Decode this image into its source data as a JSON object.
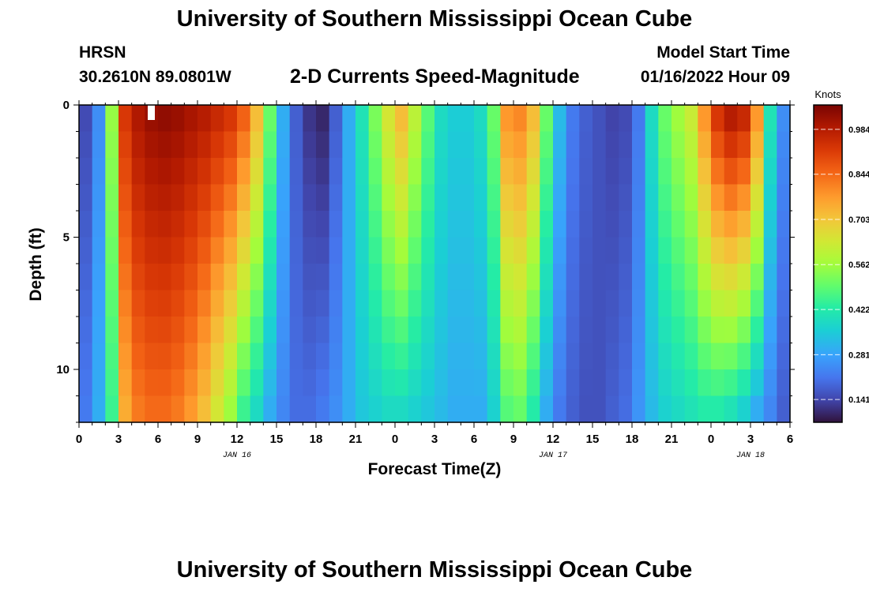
{
  "header": {
    "title": "University of Southern Mississippi Ocean Cube",
    "station": "HRSN",
    "coords": "30.2610N  89.0801W",
    "subtitle": "2-D Currents Speed-Magnitude",
    "model_start_label": "Model Start Time",
    "model_start_value": "01/16/2022 Hour 09"
  },
  "footer": {
    "title": "University of Southern Mississippi Ocean Cube"
  },
  "chart_data": {
    "type": "heatmap",
    "xlabel": "Forecast Time(Z)",
    "ylabel": "Depth (ft)",
    "colorbar_label": "Knots",
    "x_tick_labels": [
      "0",
      "3",
      "6",
      "9",
      "12",
      "15",
      "18",
      "21",
      "0",
      "3",
      "6",
      "9",
      "12",
      "15",
      "18",
      "21",
      "0",
      "3",
      "6"
    ],
    "date_labels": [
      {
        "text": "JAN 16",
        "hour": 12
      },
      {
        "text": "JAN 17",
        "hour": 36
      },
      {
        "text": "JAN 18",
        "hour": 51
      }
    ],
    "y_tick_labels": [
      "0",
      "5",
      "10"
    ],
    "xlim": [
      0,
      54
    ],
    "ylim": [
      0,
      12
    ],
    "colorbar_ticks": [
      "0.984",
      "0.844",
      "0.703",
      "0.562",
      "0.422",
      "0.281",
      "0.141"
    ],
    "color_range": [
      0.07,
      1.06
    ],
    "hours": [
      0,
      1,
      2,
      3,
      4,
      5,
      6,
      7,
      8,
      9,
      10,
      11,
      12,
      13,
      14,
      15,
      16,
      17,
      18,
      19,
      20,
      21,
      22,
      23,
      24,
      25,
      26,
      27,
      28,
      29,
      30,
      31,
      32,
      33,
      34,
      35,
      36,
      37,
      38,
      39,
      40,
      41,
      42,
      43,
      44,
      45,
      46,
      47,
      48,
      49,
      50,
      51,
      52,
      53,
      54
    ],
    "surface_speed": [
      0.15,
      0.25,
      0.55,
      0.92,
      0.99,
      1.02,
      1.03,
      1.02,
      1.0,
      0.98,
      0.95,
      0.92,
      0.85,
      0.72,
      0.5,
      0.3,
      0.18,
      0.12,
      0.1,
      0.18,
      0.3,
      0.4,
      0.52,
      0.64,
      0.72,
      0.6,
      0.48,
      0.38,
      0.35,
      0.35,
      0.38,
      0.5,
      0.78,
      0.8,
      0.72,
      0.5,
      0.32,
      0.22,
      0.18,
      0.16,
      0.14,
      0.15,
      0.22,
      0.38,
      0.5,
      0.56,
      0.62,
      0.78,
      0.92,
      0.98,
      0.95,
      0.78,
      0.4,
      0.25,
      0.12
    ],
    "bottom_speed": [
      0.22,
      0.3,
      0.45,
      0.75,
      0.82,
      0.84,
      0.84,
      0.82,
      0.78,
      0.72,
      0.64,
      0.56,
      0.45,
      0.38,
      0.3,
      0.24,
      0.2,
      0.2,
      0.22,
      0.25,
      0.3,
      0.34,
      0.36,
      0.38,
      0.38,
      0.36,
      0.34,
      0.32,
      0.3,
      0.3,
      0.3,
      0.36,
      0.48,
      0.5,
      0.42,
      0.3,
      0.22,
      0.18,
      0.16,
      0.16,
      0.18,
      0.2,
      0.26,
      0.32,
      0.36,
      0.38,
      0.4,
      0.42,
      0.42,
      0.4,
      0.36,
      0.3,
      0.24,
      0.18,
      0.14
    ]
  }
}
